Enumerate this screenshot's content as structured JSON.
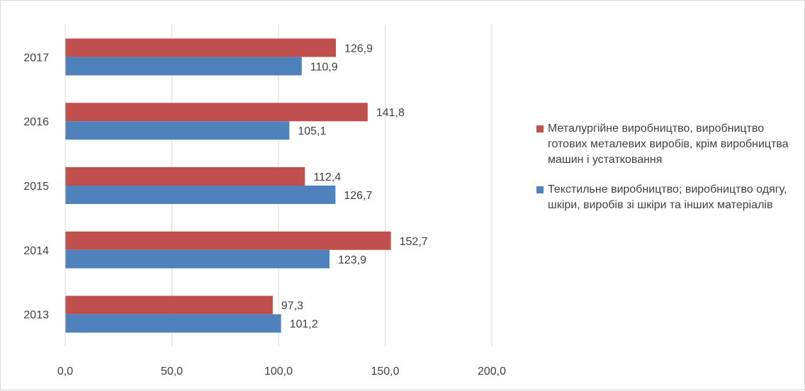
{
  "chart_data": {
    "type": "bar",
    "orientation": "horizontal",
    "categories": [
      "2013",
      "2014",
      "2015",
      "2016",
      "2017"
    ],
    "series": [
      {
        "name": "Металургійне виробництво, виробництво готових металевих виробів, крім виробництва машин і устатковання",
        "color": "#c0504d",
        "values": [
          97.3,
          152.7,
          112.4,
          141.8,
          126.9
        ],
        "labels": [
          "97,3",
          "152,7",
          "112,4",
          "141,8",
          "126,9"
        ]
      },
      {
        "name": "Текстильне виробництво; виробництво одягу, шкіри, виробів зі шкіри та інших матеріалів",
        "color": "#4f81bd",
        "values": [
          101.2,
          123.9,
          126.7,
          105.1,
          110.9
        ],
        "labels": [
          "101,2",
          "123,9",
          "126,7",
          "105,1",
          "110,9"
        ]
      }
    ],
    "xlim": [
      0,
      200
    ],
    "xticks": [
      0,
      50,
      100,
      150,
      200
    ],
    "xtick_labels": [
      "0,0",
      "50,0",
      "100,0",
      "150,0",
      "200,0"
    ],
    "grid": "vertical",
    "legend_position": "right",
    "title": "",
    "xlabel": "",
    "ylabel": ""
  }
}
